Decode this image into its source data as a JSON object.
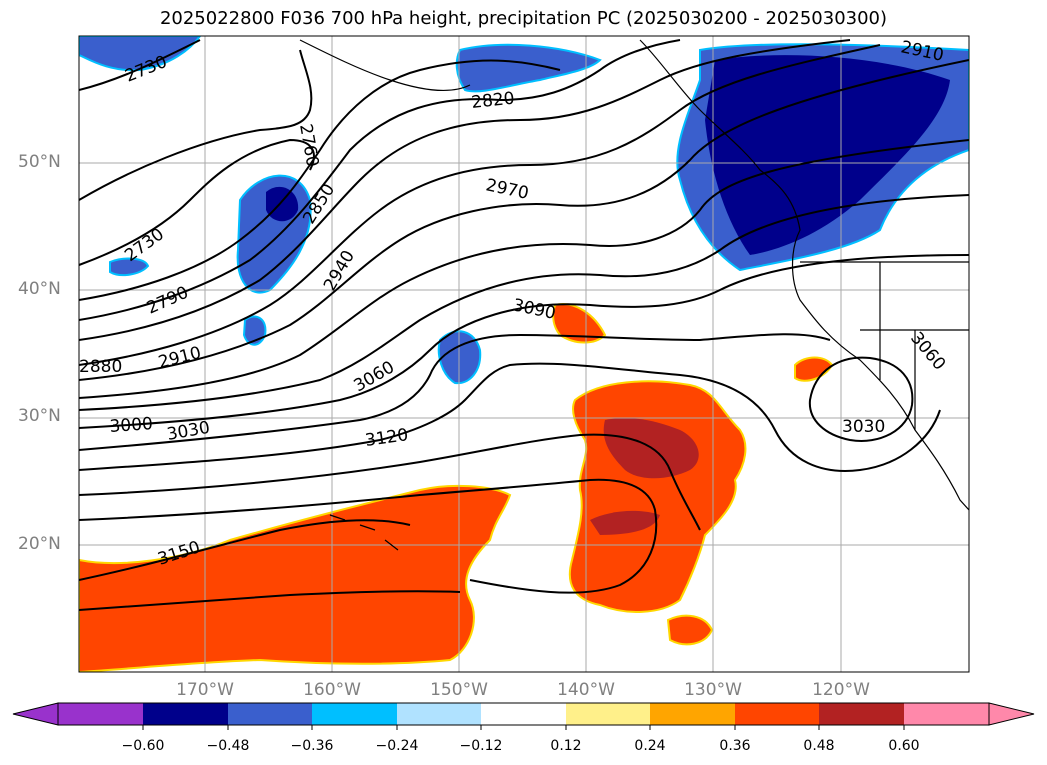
{
  "title": "2025022800 F036 700 hPa height, precipitation PC (2025030200 - 2025030300)",
  "lat_labels": [
    "50°N",
    "40°N",
    "30°N",
    "20°N"
  ],
  "lon_labels": [
    "170°W",
    "160°W",
    "150°W",
    "140°W",
    "130°W",
    "120°W"
  ],
  "contour_labels": [
    "2730",
    "2820",
    "2910",
    "2760",
    "2850",
    "2970",
    "2730",
    "2790",
    "2940",
    "3090",
    "2880",
    "2910",
    "3060",
    "3060",
    "3000",
    "3030",
    "3120",
    "3030",
    "3150"
  ],
  "colorbar": {
    "ticks": [
      "−0.60",
      "−0.48",
      "−0.36",
      "−0.24",
      "−0.12",
      "0.12",
      "0.24",
      "0.36",
      "0.48",
      "0.60"
    ],
    "colors": {
      "under": "#9932cc",
      "bins": [
        "#00008b",
        "#3a5fcd",
        "#00bfff",
        "#b0e2ff",
        "#ffffff",
        "#fff08a",
        "#ffa500",
        "#ff4500",
        "#b22222"
      ],
      "over": "#ff88aa"
    }
  }
}
